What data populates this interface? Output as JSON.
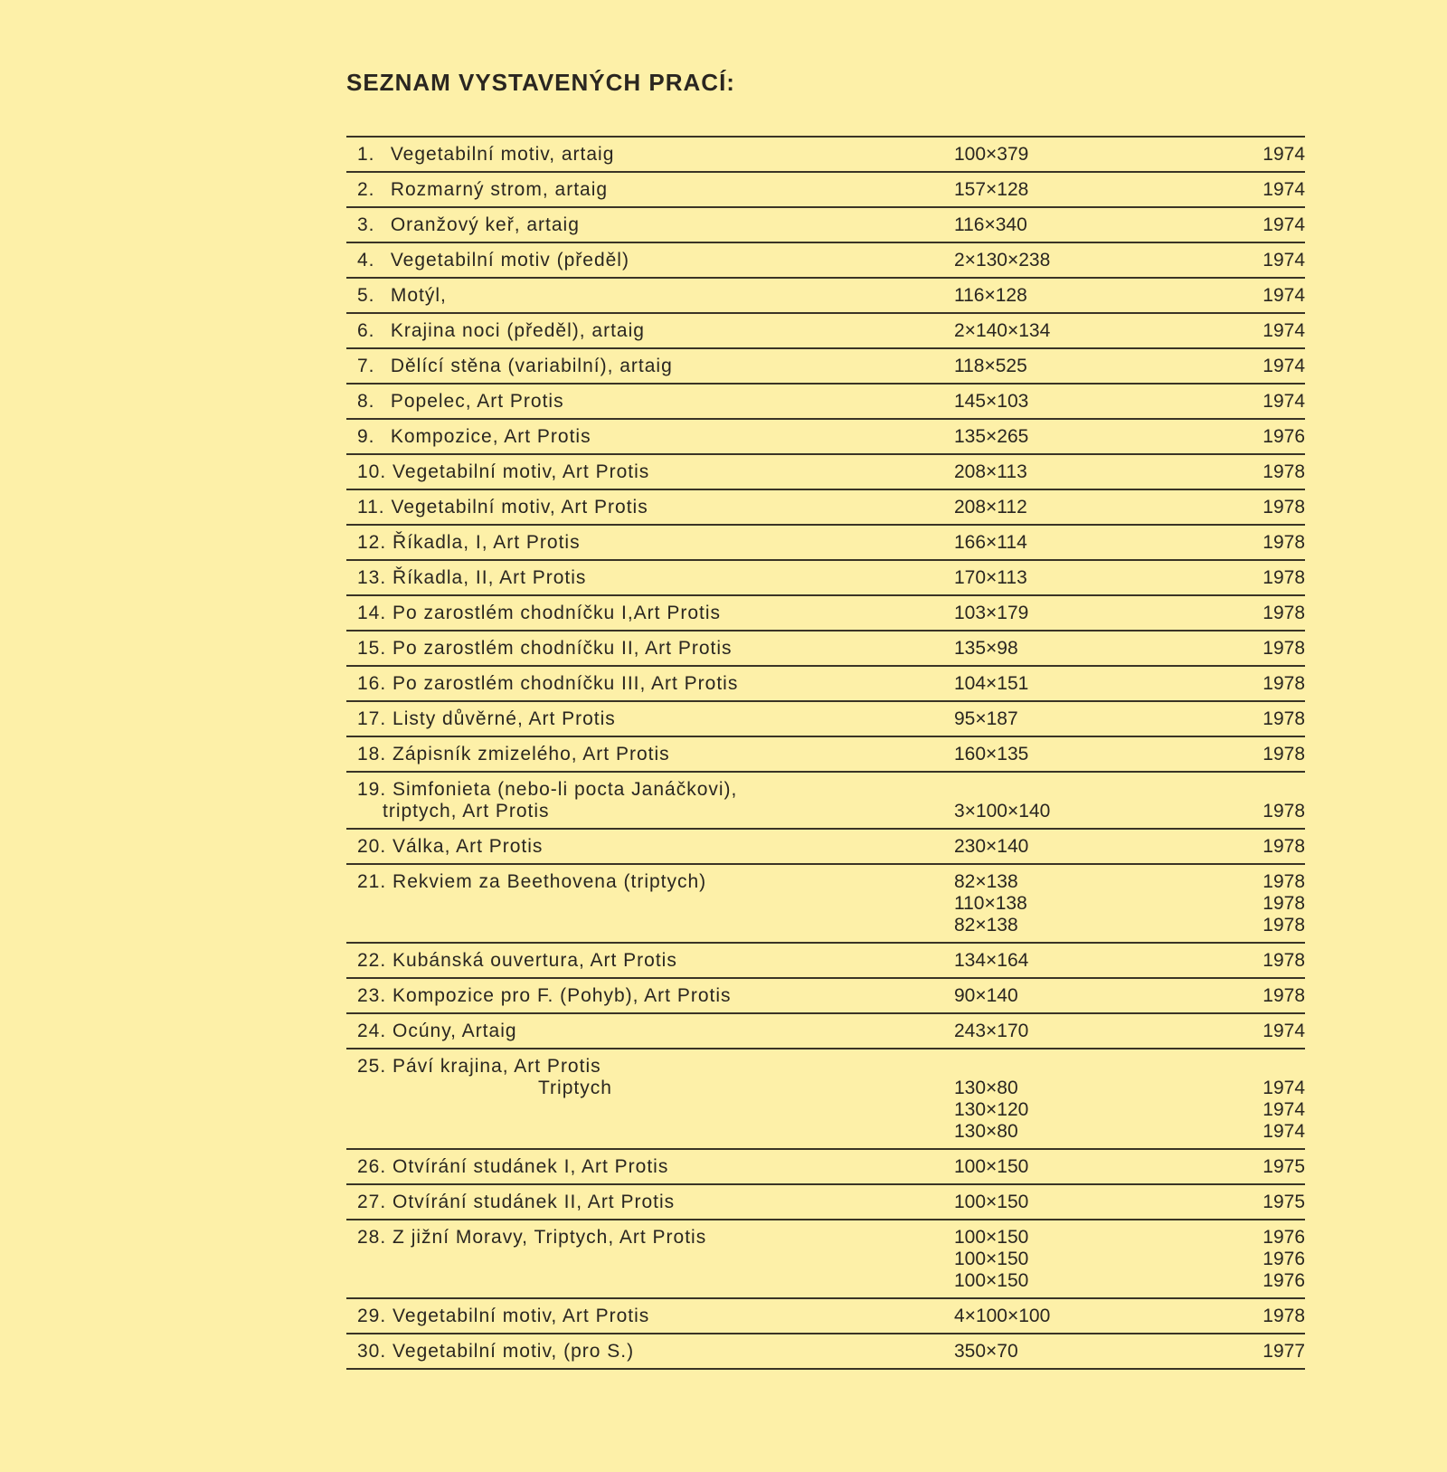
{
  "heading": "SEZNAM VYSTAVENÝCH PRACÍ:",
  "works": [
    {
      "num": "1.",
      "title": [
        "Vegetabilní motiv, artaig"
      ],
      "dims": [
        "100×379"
      ],
      "years": [
        "1974"
      ]
    },
    {
      "num": "2.",
      "title": [
        "Rozmarný strom, artaig"
      ],
      "dims": [
        "157×128"
      ],
      "years": [
        "1974"
      ]
    },
    {
      "num": "3.",
      "title": [
        "Oranžový keř, artaig"
      ],
      "dims": [
        "116×340"
      ],
      "years": [
        "1974"
      ]
    },
    {
      "num": "4.",
      "title": [
        "Vegetabilní motiv (předěl)"
      ],
      "dims": [
        "2×130×238"
      ],
      "years": [
        "1974"
      ]
    },
    {
      "num": "5.",
      "title": [
        "Motýl,"
      ],
      "dims": [
        "116×128"
      ],
      "years": [
        "1974"
      ]
    },
    {
      "num": "6.",
      "title": [
        "Krajina noci (předěl), artaig"
      ],
      "dims": [
        "2×140×134"
      ],
      "years": [
        "1974"
      ]
    },
    {
      "num": "7.",
      "title": [
        "Dělící stěna (variabilní), artaig"
      ],
      "dims": [
        "118×525"
      ],
      "years": [
        "1974"
      ]
    },
    {
      "num": "8.",
      "title": [
        "Popelec, Art Protis"
      ],
      "dims": [
        "145×103"
      ],
      "years": [
        "1974"
      ]
    },
    {
      "num": "9.",
      "title": [
        "Kompozice, Art Protis"
      ],
      "dims": [
        "135×265"
      ],
      "years": [
        "1976"
      ]
    },
    {
      "num": "10.",
      "title": [
        "Vegetabilní motiv, Art Protis"
      ],
      "dims": [
        "208×113"
      ],
      "years": [
        "1978"
      ]
    },
    {
      "num": "11.",
      "title": [
        "Vegetabilní motiv, Art Protis"
      ],
      "dims": [
        "208×112"
      ],
      "years": [
        "1978"
      ]
    },
    {
      "num": "12.",
      "title": [
        "Říkadla, I, Art Protis"
      ],
      "dims": [
        "166×114"
      ],
      "years": [
        "1978"
      ]
    },
    {
      "num": "13.",
      "title": [
        "Říkadla, II, Art Protis"
      ],
      "dims": [
        "170×113"
      ],
      "years": [
        "1978"
      ]
    },
    {
      "num": "14.",
      "title": [
        "Po zarostlém chodníčku I,Art Protis"
      ],
      "dims": [
        "103×179"
      ],
      "years": [
        "1978"
      ]
    },
    {
      "num": "15.",
      "title": [
        "Po zarostlém chodníčku II, Art Protis"
      ],
      "dims": [
        "135×98"
      ],
      "years": [
        "1978"
      ]
    },
    {
      "num": "16.",
      "title": [
        "Po zarostlém chodníčku III, Art Protis"
      ],
      "dims": [
        "104×151"
      ],
      "years": [
        "1978"
      ]
    },
    {
      "num": "17.",
      "title": [
        "Listy důvěrné, Art Protis"
      ],
      "dims": [
        "95×187"
      ],
      "years": [
        "1978"
      ]
    },
    {
      "num": "18.",
      "title": [
        "Zápisník zmizelého, Art Protis"
      ],
      "dims": [
        "160×135"
      ],
      "years": [
        "1978"
      ]
    },
    {
      "num": "19.",
      "title": [
        "Simfonieta (nebo-li pocta Janáčkovi),",
        "triptych, Art Protis"
      ],
      "dims": [
        "",
        "3×100×140"
      ],
      "years": [
        "",
        "1978"
      ]
    },
    {
      "num": "20.",
      "title": [
        "Válka, Art Protis"
      ],
      "dims": [
        "230×140"
      ],
      "years": [
        "1978"
      ]
    },
    {
      "num": "21.",
      "title": [
        "Rekviem za Beethovena (triptych)"
      ],
      "dims": [
        "82×138",
        "110×138",
        "82×138"
      ],
      "years": [
        "1978",
        "1978",
        "1978"
      ]
    },
    {
      "num": "22.",
      "title": [
        "Kubánská ouvertura, Art Protis"
      ],
      "dims": [
        "134×164"
      ],
      "years": [
        "1978"
      ]
    },
    {
      "num": "23.",
      "title": [
        "Kompozice pro F. (Pohyb), Art Protis"
      ],
      "dims": [
        "90×140"
      ],
      "years": [
        "1978"
      ]
    },
    {
      "num": "24.",
      "title": [
        "Ocúny, Artaig"
      ],
      "dims": [
        "243×170"
      ],
      "years": [
        "1974"
      ]
    },
    {
      "num": "25.",
      "title": [
        "Páví krajina, Art Protis",
        "Triptych"
      ],
      "dims": [
        "",
        "130×80",
        "130×120",
        "130×80"
      ],
      "years": [
        "",
        "1974",
        "1974",
        "1974"
      ],
      "indent": true
    },
    {
      "num": "26.",
      "title": [
        "Otvírání studánek I, Art Protis"
      ],
      "dims": [
        "100×150"
      ],
      "years": [
        "1975"
      ]
    },
    {
      "num": "27.",
      "title": [
        "Otvírání studánek II, Art Protis"
      ],
      "dims": [
        "100×150"
      ],
      "years": [
        "1975"
      ]
    },
    {
      "num": "28.",
      "title": [
        "Z jižní Moravy, Triptych, Art Protis"
      ],
      "dims": [
        "100×150",
        "100×150",
        "100×150"
      ],
      "years": [
        "1976",
        "1976",
        "1976"
      ]
    },
    {
      "num": "29.",
      "title": [
        "Vegetabilní motiv, Art Protis"
      ],
      "dims": [
        "4×100×100"
      ],
      "years": [
        "1978"
      ]
    },
    {
      "num": "30.",
      "title": [
        "Vegetabilní motiv, (pro S.)"
      ],
      "dims": [
        "350×70"
      ],
      "years": [
        "1977"
      ]
    }
  ]
}
